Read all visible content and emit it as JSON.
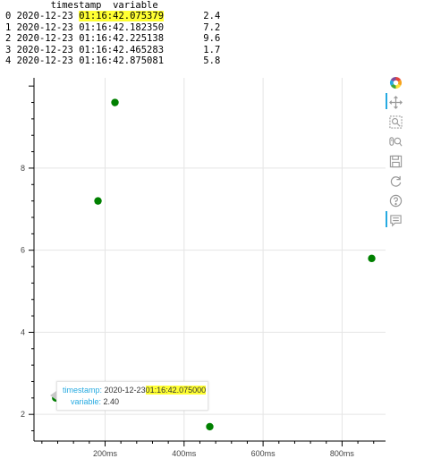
{
  "dataframe": {
    "header": "        timestamp  variable",
    "rows": [
      {
        "index": "0",
        "date": "2020-12-23",
        "time": "01:16:42.075379",
        "value": "2.4",
        "highlight": true
      },
      {
        "index": "1",
        "date": "2020-12-23",
        "time": "01:16:42.182350",
        "value": "7.2",
        "highlight": false
      },
      {
        "index": "2",
        "date": "2020-12-23",
        "time": "01:16:42.225138",
        "value": "9.6",
        "highlight": false
      },
      {
        "index": "3",
        "date": "2020-12-23",
        "time": "01:16:42.465283",
        "value": "1.7",
        "highlight": false
      },
      {
        "index": "4",
        "date": "2020-12-23",
        "time": "01:16:42.875081",
        "value": "5.8",
        "highlight": false
      }
    ]
  },
  "chart_data": {
    "type": "scatter",
    "x_units": "ms",
    "x": [
      75,
      182,
      225,
      465,
      875
    ],
    "y": [
      2.4,
      7.2,
      9.6,
      1.7,
      5.8
    ],
    "xlim": [
      20,
      910
    ],
    "ylim": [
      1.35,
      10.2
    ],
    "x_ticks": [
      {
        "value": 200,
        "label": "200ms"
      },
      {
        "value": 400,
        "label": "400ms"
      },
      {
        "value": 600,
        "label": "600ms"
      },
      {
        "value": 800,
        "label": "800ms"
      }
    ],
    "y_ticks": [
      {
        "value": 2,
        "label": "2"
      },
      {
        "value": 4,
        "label": "4"
      },
      {
        "value": 6,
        "label": "6"
      },
      {
        "value": 8,
        "label": "8"
      }
    ],
    "marker_color": "#008000",
    "grid": true,
    "legend": "none"
  },
  "tooltip": {
    "timestamp_label": "timestamp:",
    "timestamp_date": "2020-12-23",
    "timestamp_time": "01:16:42.075000",
    "variable_label": "variable:",
    "variable_value": "2.40"
  },
  "toolbar": {
    "tools": [
      "bokeh-logo-icon",
      "pan-icon",
      "box-zoom-icon",
      "wheel-zoom-icon",
      "save-icon",
      "reset-icon",
      "help-icon",
      "hover-icon"
    ]
  },
  "colors": {
    "accent": "#26aae1",
    "highlight": "#ffff33",
    "grid": "#e5e5e5"
  }
}
